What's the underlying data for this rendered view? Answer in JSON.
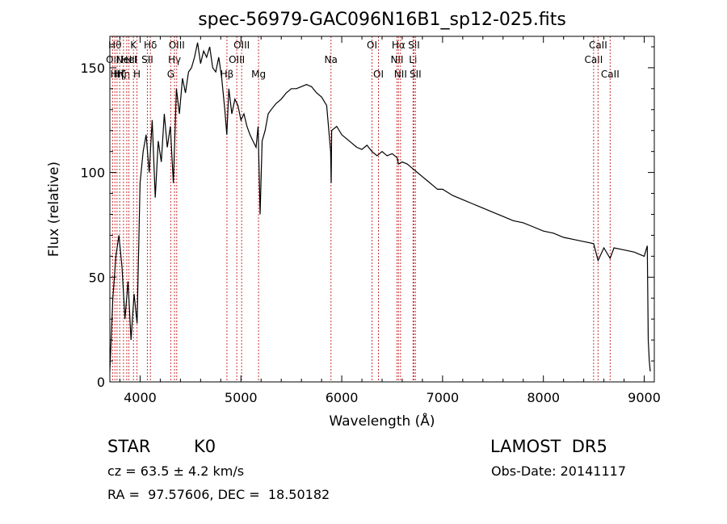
{
  "chart_data": {
    "type": "line",
    "title": "spec-56979-GAC096N16B1_sp12-025.fits",
    "xlabel": "Wavelength (Å)",
    "ylabel": "Flux (relative)",
    "xlim": [
      3700,
      9100
    ],
    "ylim": [
      0,
      165
    ],
    "xticks": [
      4000,
      5000,
      6000,
      7000,
      8000,
      9000
    ],
    "yticks": [
      0,
      50,
      100,
      150
    ],
    "grid": false,
    "line_color": "#000000",
    "marker_color": "#cc3333",
    "x": [
      3700,
      3730,
      3760,
      3790,
      3820,
      3850,
      3880,
      3910,
      3940,
      3970,
      4000,
      4030,
      4060,
      4090,
      4120,
      4150,
      4180,
      4210,
      4240,
      4270,
      4300,
      4330,
      4360,
      4390,
      4420,
      4450,
      4480,
      4510,
      4540,
      4570,
      4600,
      4630,
      4660,
      4690,
      4720,
      4750,
      4780,
      4810,
      4840,
      4860,
      4880,
      4910,
      4940,
      4970,
      5000,
      5030,
      5060,
      5090,
      5120,
      5150,
      5170,
      5190,
      5210,
      5240,
      5270,
      5300,
      5350,
      5400,
      5450,
      5500,
      5550,
      5600,
      5650,
      5700,
      5750,
      5800,
      5850,
      5890,
      5895,
      5900,
      5950,
      6000,
      6050,
      6100,
      6150,
      6200,
      6250,
      6300,
      6350,
      6400,
      6450,
      6500,
      6550,
      6563,
      6600,
      6650,
      6700,
      6750,
      6800,
      6850,
      6900,
      6950,
      7000,
      7100,
      7200,
      7300,
      7400,
      7500,
      7600,
      7700,
      7800,
      7900,
      8000,
      8100,
      8200,
      8300,
      8400,
      8498,
      8542,
      8600,
      8662,
      8700,
      8800,
      8900,
      9000,
      9030,
      9040,
      9050,
      9060
    ],
    "y": [
      5,
      40,
      60,
      70,
      55,
      30,
      48,
      20,
      42,
      28,
      95,
      110,
      118,
      100,
      125,
      88,
      115,
      105,
      128,
      112,
      122,
      95,
      140,
      128,
      145,
      138,
      148,
      150,
      155,
      162,
      152,
      158,
      155,
      160,
      150,
      148,
      155,
      145,
      130,
      118,
      140,
      128,
      135,
      132,
      125,
      128,
      122,
      118,
      115,
      112,
      122,
      80,
      115,
      120,
      128,
      130,
      133,
      135,
      138,
      140,
      140,
      141,
      142,
      141,
      138,
      136,
      132,
      110,
      95,
      120,
      122,
      118,
      116,
      114,
      112,
      111,
      113,
      110,
      108,
      110,
      108,
      109,
      107,
      104,
      105,
      104,
      102,
      100,
      98,
      96,
      94,
      92,
      92,
      89,
      87,
      85,
      83,
      81,
      79,
      77,
      76,
      74,
      72,
      71,
      69,
      68,
      67,
      66,
      58,
      64,
      59,
      64,
      63,
      62,
      60,
      65,
      20,
      10,
      5
    ],
    "lines": [
      {
        "wl": 3727,
        "label": "OII",
        "row": 1
      },
      {
        "wl": 3750,
        "label": "Hθ",
        "row": 0
      },
      {
        "wl": 3771,
        "label": "Hη",
        "row": 2
      },
      {
        "wl": 3798,
        "label": "Hζ",
        "row": 2
      },
      {
        "wl": 3835,
        "label": "Hη",
        "row": 2
      },
      {
        "wl": 3868,
        "label": "NeIII",
        "row": 1
      },
      {
        "wl": 3889,
        "label": "HeI",
        "row": 1
      },
      {
        "wl": 3934,
        "label": "K",
        "row": 0
      },
      {
        "wl": 3969,
        "label": "H",
        "row": 2
      },
      {
        "wl": 4102,
        "label": "Hδ",
        "row": 0
      },
      {
        "wl": 4072,
        "label": "SII",
        "row": 1
      },
      {
        "wl": 4304,
        "label": "G",
        "row": 2
      },
      {
        "wl": 4341,
        "label": "Hγ",
        "row": 1
      },
      {
        "wl": 4363,
        "label": "OIII",
        "row": 0
      },
      {
        "wl": 4861,
        "label": "Hβ",
        "row": 2
      },
      {
        "wl": 4959,
        "label": "OIII",
        "row": 1
      },
      {
        "wl": 5007,
        "label": "OIII",
        "row": 0
      },
      {
        "wl": 5175,
        "label": "Mg",
        "row": 2
      },
      {
        "wl": 5893,
        "label": "Na",
        "row": 1
      },
      {
        "wl": 6300,
        "label": "OI",
        "row": 0
      },
      {
        "wl": 6364,
        "label": "OI",
        "row": 2
      },
      {
        "wl": 6548,
        "label": "NII",
        "row": 1
      },
      {
        "wl": 6563,
        "label": "Hα",
        "row": 0
      },
      {
        "wl": 6583,
        "label": "NII",
        "row": 2
      },
      {
        "wl": 6707,
        "label": "Li",
        "row": 1
      },
      {
        "wl": 6716,
        "label": "SII",
        "row": 0
      },
      {
        "wl": 6731,
        "label": "SII",
        "row": 2
      },
      {
        "wl": 8498,
        "label": "CaII",
        "row": 1
      },
      {
        "wl": 8542,
        "label": "CaII",
        "row": 0
      },
      {
        "wl": 8662,
        "label": "CaII",
        "row": 2
      }
    ]
  },
  "info": {
    "class_label": "STAR",
    "subclass": "K0",
    "survey": "LAMOST  DR5",
    "cz": "cz = 63.5 ± 4.2 km/s",
    "obs_date": "Obs-Date: 20141117",
    "coords": "RA =  97.57606, DEC =  18.50182"
  }
}
